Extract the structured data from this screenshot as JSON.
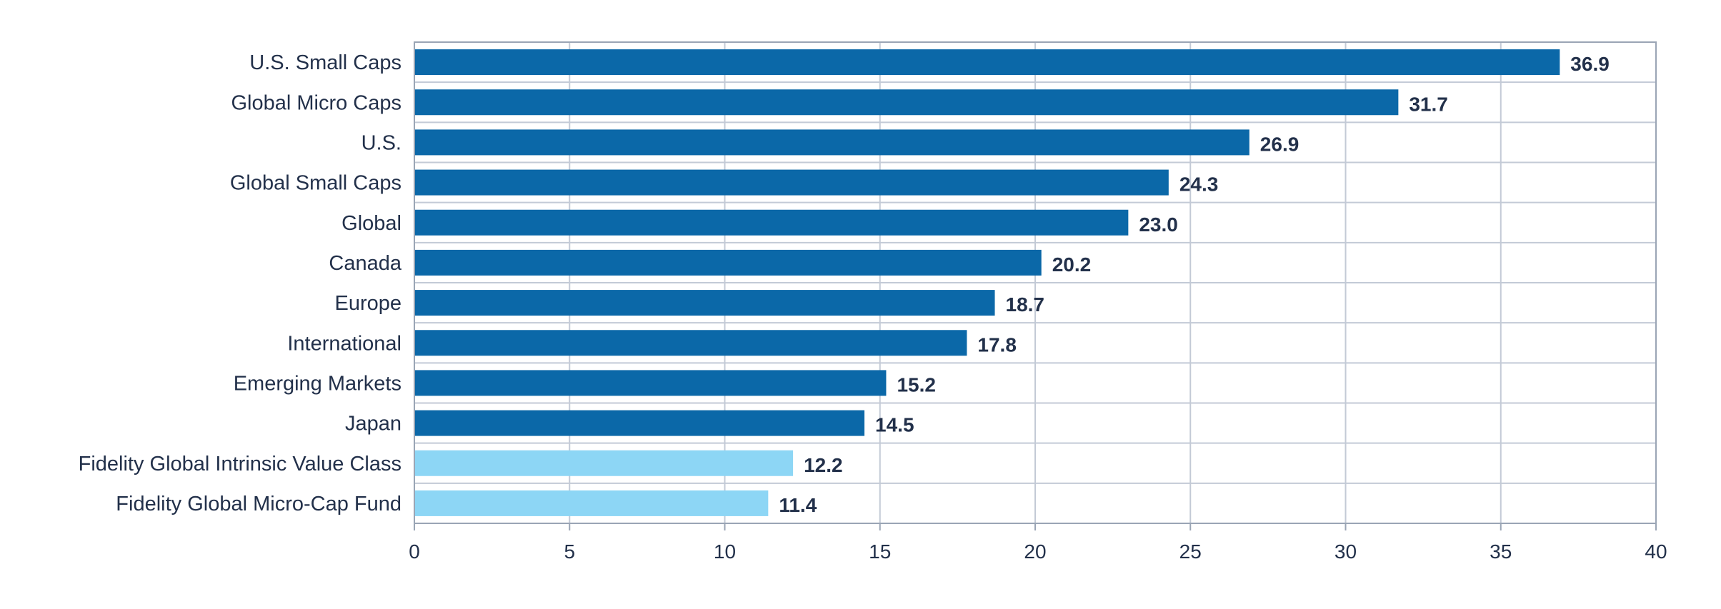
{
  "chart_data": {
    "type": "bar",
    "orientation": "horizontal",
    "title": "",
    "xlabel": "",
    "ylabel": "",
    "xlim": [
      0,
      40
    ],
    "ticks": [
      0,
      5,
      10,
      15,
      20,
      25,
      30,
      35,
      40
    ],
    "grid": true,
    "legend": "none",
    "categories": [
      "U.S. Small Caps",
      "Global Micro Caps",
      "U.S.",
      "Global Small Caps",
      "Global",
      "Canada",
      "Europe",
      "International",
      "Emerging Markets",
      "Japan",
      "Fidelity Global Intrinsic Value Class",
      "Fidelity Global Micro-Cap Fund"
    ],
    "values": [
      36.9,
      31.7,
      26.9,
      24.3,
      23.0,
      20.2,
      18.7,
      17.8,
      15.2,
      14.5,
      12.2,
      11.4
    ],
    "value_labels": [
      "36.9",
      "31.7",
      "26.9",
      "24.3",
      "23.0",
      "20.2",
      "18.7",
      "17.8",
      "15.2",
      "14.5",
      "12.2",
      "11.4"
    ],
    "bar_colors": [
      "#0b68a8",
      "#0b68a8",
      "#0b68a8",
      "#0b68a8",
      "#0b68a8",
      "#0b68a8",
      "#0b68a8",
      "#0b68a8",
      "#0b68a8",
      "#0b68a8",
      "#8dd6f5",
      "#8dd6f5"
    ]
  },
  "colors": {
    "grid": "#c3cad6",
    "axis": "#9aa5b5",
    "text": "#22304a"
  }
}
